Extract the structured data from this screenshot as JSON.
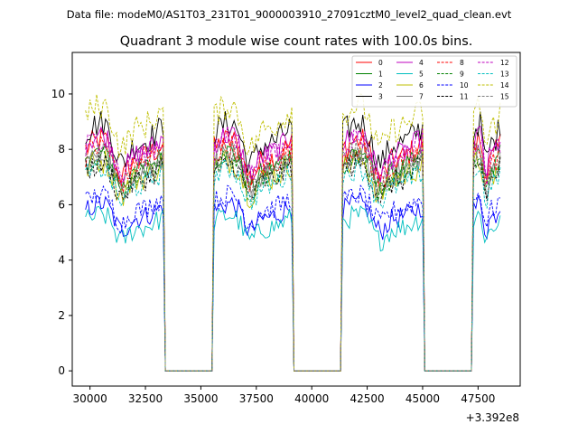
{
  "chart_data": {
    "type": "line",
    "suptitle": "Data file: modeM0/AS1T03_231T01_9000003910_27091cztM0_level2_quad_clean.evt",
    "title": "Quadrant 3 module wise count rates with 100.0s bins.",
    "xlabel": "",
    "ylabel": "",
    "x_offset_label": "+3.392e8",
    "x_offset": 339200000,
    "xlim": [
      29200,
      49400
    ],
    "ylim": [
      -0.55,
      11.5
    ],
    "x_ticks": [
      30000,
      32500,
      35000,
      37500,
      40000,
      42500,
      45000,
      47500
    ],
    "x_tick_labels": [
      "30000",
      "32500",
      "35000",
      "37500",
      "40000",
      "42500",
      "45000",
      "47500"
    ],
    "y_ticks": [
      0,
      2,
      4,
      6,
      8,
      10
    ],
    "y_tick_labels": [
      "0",
      "2",
      "4",
      "6",
      "8",
      "10"
    ],
    "grid": false,
    "legend_location": "top-right",
    "legend_columns": 4,
    "bin_size_s": 100,
    "segments": [
      {
        "state": "on",
        "start": 29800,
        "end": 33300
      },
      {
        "state": "off",
        "start": 33500,
        "end": 35500
      },
      {
        "state": "on",
        "start": 35600,
        "end": 39100
      },
      {
        "state": "off",
        "start": 39300,
        "end": 41300
      },
      {
        "state": "on",
        "start": 41400,
        "end": 45000
      },
      {
        "state": "off",
        "start": 45100,
        "end": 47100
      },
      {
        "state": "on",
        "start": 47300,
        "end": 48500
      }
    ],
    "series": [
      {
        "name": "0",
        "color": "#ff0000",
        "dash": "solid",
        "mean": 8.0,
        "amplitude": 0.5
      },
      {
        "name": "1",
        "color": "#008000",
        "dash": "solid",
        "mean": 7.6,
        "amplitude": 0.4
      },
      {
        "name": "2",
        "color": "#0000ff",
        "dash": "solid",
        "mean": 5.8,
        "amplitude": 0.4
      },
      {
        "name": "3",
        "color": "#000000",
        "dash": "solid",
        "mean": 8.6,
        "amplitude": 0.5
      },
      {
        "name": "4",
        "color": "#bf00bf",
        "dash": "solid",
        "mean": 8.2,
        "amplitude": 0.45
      },
      {
        "name": "5",
        "color": "#00bfbf",
        "dash": "solid",
        "mean": 5.4,
        "amplitude": 0.4
      },
      {
        "name": "6",
        "color": "#bfbf00",
        "dash": "solid",
        "mean": 7.3,
        "amplitude": 0.5
      },
      {
        "name": "7",
        "color": "#808080",
        "dash": "solid",
        "mean": 7.5,
        "amplitude": 0.45
      },
      {
        "name": "8",
        "color": "#ff0000",
        "dash": "dashed",
        "mean": 7.8,
        "amplitude": 0.45
      },
      {
        "name": "9",
        "color": "#008000",
        "dash": "dashed",
        "mean": 7.4,
        "amplitude": 0.4
      },
      {
        "name": "10",
        "color": "#0000ff",
        "dash": "dashed",
        "mean": 6.1,
        "amplitude": 0.4
      },
      {
        "name": "11",
        "color": "#000000",
        "dash": "dashed",
        "mean": 7.2,
        "amplitude": 0.45
      },
      {
        "name": "12",
        "color": "#bf00bf",
        "dash": "dashed",
        "mean": 8.1,
        "amplitude": 0.45
      },
      {
        "name": "13",
        "color": "#00bfbf",
        "dash": "dashed",
        "mean": 7.0,
        "amplitude": 0.4
      },
      {
        "name": "14",
        "color": "#bfbf00",
        "dash": "dashed",
        "mean": 9.2,
        "amplitude": 0.5
      },
      {
        "name": "15",
        "color": "#808080",
        "dash": "dashed",
        "mean": 7.6,
        "amplitude": 0.45
      }
    ]
  }
}
